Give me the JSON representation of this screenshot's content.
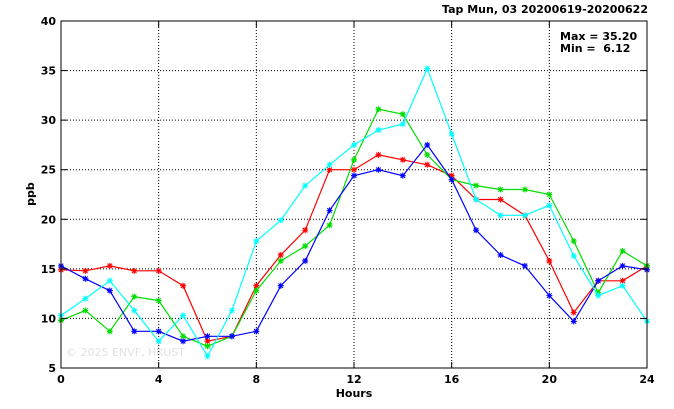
{
  "chart_data": {
    "type": "line",
    "title": "Tap Mun, 03 20200619-20200622",
    "xlabel": "Hours",
    "ylabel": "ppb",
    "xlim": [
      0,
      24
    ],
    "ylim": [
      5,
      40
    ],
    "x_ticks": [
      0,
      4,
      8,
      12,
      16,
      20,
      24
    ],
    "y_ticks": [
      5,
      10,
      15,
      20,
      25,
      30,
      35,
      40
    ],
    "grid": true,
    "stats": [
      "Max = 35.20",
      "Min =  6.12"
    ],
    "watermark": "© 2025  ENVF, HKUST",
    "x": [
      0,
      1,
      2,
      3,
      4,
      5,
      6,
      7,
      8,
      9,
      10,
      11,
      12,
      13,
      14,
      15,
      16,
      17,
      18,
      19,
      20,
      21,
      22,
      23,
      24
    ],
    "series": [
      {
        "color": "#ff0000",
        "values": [
          14.9,
          14.8,
          15.3,
          14.8,
          14.8,
          13.3,
          7.7,
          8.2,
          13.3,
          16.4,
          18.9,
          25.0,
          25.0,
          26.5,
          26.0,
          25.5,
          24.4,
          22.0,
          22.0,
          20.4,
          15.8,
          10.6,
          13.8,
          13.8,
          15.3
        ]
      },
      {
        "color": "#00dd00",
        "values": [
          9.8,
          10.8,
          8.7,
          12.2,
          11.8,
          8.2,
          7.2,
          8.2,
          12.8,
          15.8,
          17.3,
          19.4,
          26.0,
          31.1,
          30.6,
          26.5,
          24.0,
          23.4,
          23.0,
          23.0,
          22.5,
          17.8,
          12.6,
          16.8,
          15.3
        ]
      },
      {
        "color": "#0000ff",
        "values": [
          15.3,
          14.0,
          12.8,
          8.7,
          8.7,
          7.7,
          8.2,
          8.2,
          8.7,
          13.3,
          15.8,
          20.9,
          24.4,
          25.0,
          24.4,
          27.5,
          24.0,
          18.9,
          16.4,
          15.3,
          12.3,
          9.7,
          13.8,
          15.3,
          14.9
        ]
      },
      {
        "color": "#00ffff",
        "values": [
          10.3,
          12.0,
          13.8,
          10.8,
          7.7,
          10.3,
          6.2,
          10.8,
          17.8,
          19.9,
          23.4,
          25.5,
          27.5,
          29.0,
          29.6,
          35.2,
          28.6,
          22.0,
          20.4,
          20.4,
          21.4,
          16.3,
          12.3,
          13.3,
          9.7
        ]
      }
    ]
  }
}
